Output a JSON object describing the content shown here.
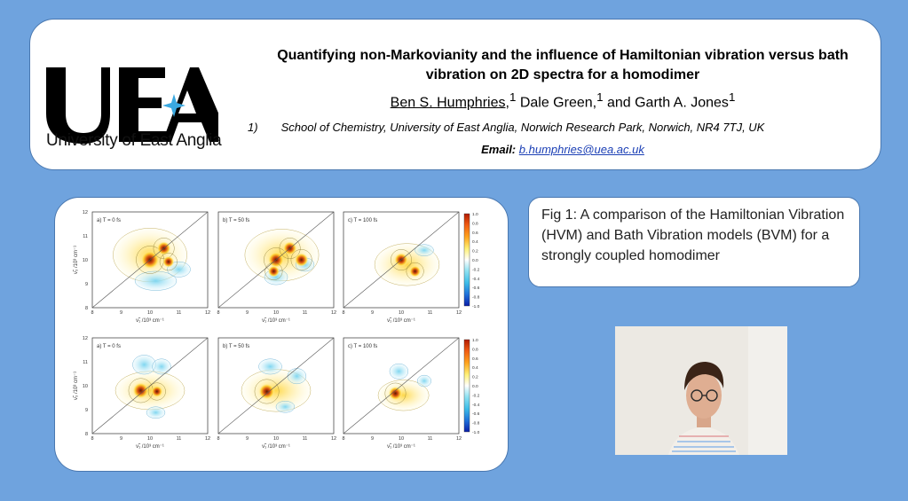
{
  "header": {
    "logo_letters": "UEA",
    "logo_caption": "University of East Anglia",
    "title_line1": "Quantifying non-Markovianity and the influence of Hamiltonian vibration versus bath",
    "title_line2": "vibration on 2D spectra for a homodimer",
    "authors": {
      "author1": "Ben S. Humphries",
      "author1_sup": "1",
      "author2": "Dale Green,",
      "author2_sup": "1",
      "and": "and Garth A. Jones",
      "author3_sup": "1"
    },
    "affiliation_num": "1)",
    "affiliation": "School of Chemistry, University of East Anglia, Norwich Research Park, Norwich, NR4 7TJ, UK",
    "email_label": "Email:",
    "email": "b.humphries@uea.ac.uk"
  },
  "figure": {
    "panel_labels": [
      "a) T = 0 fs",
      "b) T = 50 fs",
      "c) T = 100 fs"
    ],
    "x_ticks": [
      "8",
      "9",
      "10",
      "11",
      "12"
    ],
    "y_ticks": [
      "8",
      "9",
      "10",
      "11",
      "12"
    ],
    "x_axis_label": "ν̃₁ /10³ cm⁻¹",
    "y_axis_label": "ν̃₃ /10³ cm⁻¹",
    "colorbar_ticks": [
      "1.0",
      "0.8",
      "0.6",
      "0.4",
      "0.2",
      "0.0",
      "-0.2",
      "-0.4",
      "-0.6",
      "-0.8",
      "-1.0"
    ]
  },
  "caption": {
    "text": "Fig 1: A comparison of the Hamiltonian Vibration (HVM) and Bath Vibration models (BVM) for a strongly coupled homodimer"
  },
  "colors": {
    "background": "#6fa3de",
    "panel_border": "#4a78b0",
    "link": "#1b3fb5",
    "logo_star": "#3aa8e0"
  }
}
